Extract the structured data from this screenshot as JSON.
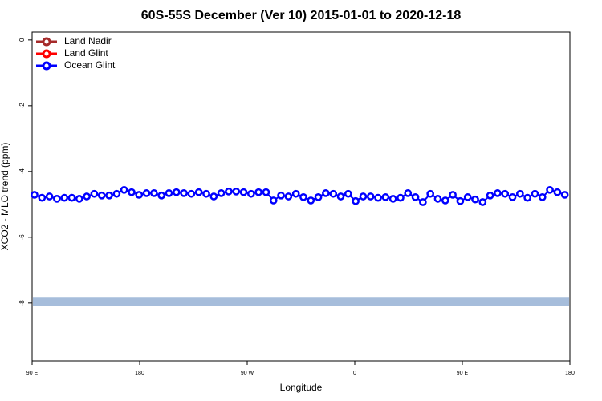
{
  "chart_data": {
    "type": "line",
    "title": "60S-55S December (Ver 10)   2015-01-01 to 2020-12-18",
    "x_label": "Longitude",
    "y_label": "XCO2 - MLO trend (ppm)",
    "xlim": [
      90,
      540
    ],
    "ylim": [
      -9.76,
      0.24
    ],
    "xticks": [
      {
        "value": 90,
        "label": "90 E"
      },
      {
        "value": 180,
        "label": "180"
      },
      {
        "value": 270,
        "label": "90 W"
      },
      {
        "value": 360,
        "label": "0"
      },
      {
        "value": 450,
        "label": "90 E"
      },
      {
        "value": 540,
        "label": "180"
      }
    ],
    "yticks": [
      0,
      -2,
      -4,
      -6,
      -8
    ],
    "legend": "top-left",
    "band": {
      "value": -7.95,
      "color": "#a6bddb"
    },
    "x": [
      92,
      98.25,
      104.5,
      110.75,
      117,
      123.25,
      129.5,
      135.75,
      142,
      148.25,
      154.5,
      160.75,
      167,
      173.25,
      179.5,
      185.75,
      192,
      198.25,
      204.5,
      210.75,
      217,
      223.25,
      229.5,
      235.75,
      242,
      248.25,
      254.5,
      260.75,
      267,
      273.25,
      279.5,
      285.75,
      292,
      298.25,
      304.5,
      310.75,
      317,
      323.25,
      329.5,
      335.75,
      342,
      348.25,
      354.5,
      360.75,
      367,
      373.25,
      379.5,
      385.75,
      392,
      398.25,
      404.5,
      410.75,
      417,
      423.25,
      429.5,
      435.75,
      442,
      448.25,
      454.5,
      460.75,
      467,
      473.25,
      479.5,
      485.75,
      492,
      498.25,
      504.5,
      510.75,
      517,
      523.25,
      529.5,
      535.75
    ],
    "series": [
      {
        "name": "Land Nadir",
        "color": "#a52a2a",
        "values": [
          null,
          null,
          null,
          null,
          null,
          null,
          null,
          null,
          null,
          null,
          null,
          null,
          null,
          null,
          null,
          null,
          null,
          null,
          null,
          null,
          null,
          null,
          null,
          null,
          null,
          null,
          null,
          null,
          null,
          null,
          null,
          null,
          null,
          null,
          null,
          null,
          null,
          null,
          null,
          null,
          null,
          null,
          null,
          null,
          null,
          null,
          null,
          null,
          null,
          null,
          null,
          null,
          null,
          null,
          null,
          null,
          null,
          null,
          null,
          null,
          null,
          null,
          null,
          null,
          null,
          null,
          null,
          null,
          null,
          null,
          null,
          null
        ]
      },
      {
        "name": "Land Glint",
        "color": "#ff0000",
        "values": [
          null,
          null,
          null,
          null,
          null,
          null,
          null,
          null,
          null,
          null,
          null,
          null,
          null,
          null,
          null,
          null,
          null,
          null,
          null,
          null,
          null,
          null,
          null,
          null,
          null,
          null,
          null,
          null,
          null,
          null,
          null,
          null,
          null,
          null,
          null,
          null,
          null,
          null,
          null,
          null,
          null,
          null,
          null,
          null,
          null,
          null,
          null,
          null,
          null,
          null,
          null,
          null,
          null,
          null,
          null,
          null,
          null,
          null,
          null,
          null,
          null,
          null,
          null,
          null,
          null,
          null,
          null,
          null,
          null,
          null,
          null,
          null
        ]
      },
      {
        "name": "Ocean Glint",
        "color": "#0000ff",
        "values": [
          -4.71,
          -4.8,
          -4.76,
          -4.83,
          -4.8,
          -4.8,
          -4.83,
          -4.76,
          -4.68,
          -4.73,
          -4.73,
          -4.68,
          -4.56,
          -4.63,
          -4.71,
          -4.66,
          -4.66,
          -4.73,
          -4.66,
          -4.63,
          -4.66,
          -4.68,
          -4.63,
          -4.68,
          -4.76,
          -4.66,
          -4.61,
          -4.61,
          -4.63,
          -4.68,
          -4.63,
          -4.63,
          -4.88,
          -4.73,
          -4.76,
          -4.68,
          -4.78,
          -4.88,
          -4.78,
          -4.66,
          -4.68,
          -4.76,
          -4.68,
          -4.9,
          -4.76,
          -4.76,
          -4.8,
          -4.78,
          -4.83,
          -4.8,
          -4.66,
          -4.78,
          -4.93,
          -4.68,
          -4.83,
          -4.88,
          -4.71,
          -4.9,
          -4.78,
          -4.85,
          -4.93,
          -4.73,
          -4.66,
          -4.68,
          -4.78,
          -4.68,
          -4.8,
          -4.68,
          -4.78,
          -4.56,
          -4.63,
          -4.71
        ]
      }
    ]
  }
}
